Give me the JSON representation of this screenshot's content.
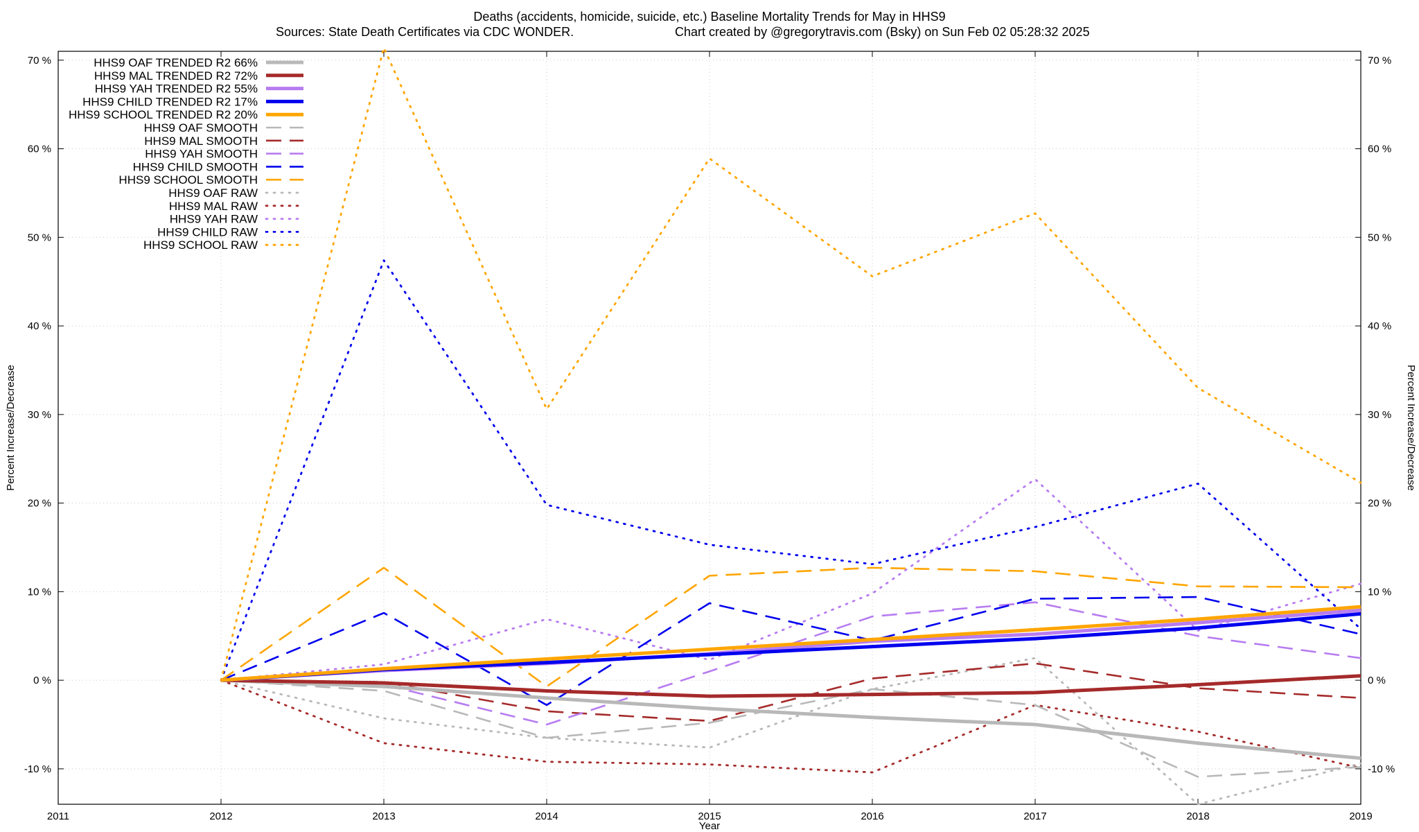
{
  "chart_data": {
    "type": "line",
    "title": "Deaths (accidents, homicide, suicide, etc.)  Baseline Mortality Trends for May in HHS9",
    "subtitle_left": "Sources: State Death Certificates via CDC WONDER.",
    "subtitle_right": "Chart created by @gregorytravis.com (Bsky) on Sun Feb 02 05:28:32 2025",
    "xlabel": "Year",
    "ylabel": "Percent Increase/Decrease",
    "ylabel_right": "Percent Increase/Decrease",
    "xlim": [
      2011,
      2019
    ],
    "ylim": [
      -14,
      71
    ],
    "x_ticks": [
      2011,
      2012,
      2013,
      2014,
      2015,
      2016,
      2017,
      2018,
      2019
    ],
    "x_tick_labels": [
      "2011",
      "2012",
      "2013",
      "2014",
      "2015",
      "2016",
      "2017",
      "2018",
      "2019"
    ],
    "y_ticks": [
      -10,
      0,
      10,
      20,
      30,
      40,
      50,
      60,
      70
    ],
    "y_tick_labels": [
      "-10 %",
      "0 %",
      "10 %",
      "20 %",
      "30 %",
      "40 %",
      "50 %",
      "60 %",
      "70 %"
    ],
    "grid": true,
    "legend_position": "top-left",
    "x": [
      2012,
      2013,
      2014,
      2015,
      2016,
      2017,
      2018,
      2019
    ],
    "series": [
      {
        "name": "HHS9 OAF TRENDED R2  66%",
        "style": "solid",
        "color": "#b8b8b8",
        "values": [
          0,
          -0.7,
          -2.0,
          -3.2,
          -4.2,
          -5.0,
          -7.1,
          -8.8
        ]
      },
      {
        "name": "HHS9 MAL TRENDED R2  72%",
        "style": "solid",
        "color": "#a52a2a",
        "values": [
          0,
          -0.3,
          -1.2,
          -1.8,
          -1.6,
          -1.4,
          -0.5,
          0.5
        ]
      },
      {
        "name": "HHS9 YAH TRENDED R2  55%",
        "style": "solid",
        "color": "#b77cf0",
        "values": [
          0,
          1.1,
          1.9,
          3.0,
          4.4,
          5.2,
          6.5,
          7.9
        ]
      },
      {
        "name": "HHS9 CHILD TRENDED R2  17%",
        "style": "solid",
        "color": "#0000ee",
        "values": [
          0,
          1.2,
          2.0,
          2.9,
          3.8,
          4.7,
          5.9,
          7.5
        ]
      },
      {
        "name": "HHS9 SCHOOL TRENDED R2  20%",
        "style": "solid",
        "color": "#ffa500",
        "values": [
          0,
          1.3,
          2.4,
          3.5,
          4.6,
          5.7,
          6.9,
          8.3
        ]
      },
      {
        "name": "HHS9 OAF SMOOTH",
        "style": "dashed",
        "color": "#b8b8b8",
        "values": [
          0,
          -1.2,
          -6.5,
          -4.8,
          -1.0,
          -2.8,
          -10.9,
          -9.8
        ]
      },
      {
        "name": "HHS9 MAL SMOOTH",
        "style": "dashed",
        "color": "#a52a2a",
        "values": [
          0,
          -0.2,
          -3.5,
          -4.6,
          0.2,
          1.9,
          -0.9,
          -2.0
        ]
      },
      {
        "name": "HHS9 YAH SMOOTH",
        "style": "dashed",
        "color": "#b77cf0",
        "values": [
          0,
          -0.5,
          -5.0,
          1.0,
          7.2,
          8.8,
          5.0,
          2.5
        ]
      },
      {
        "name": "HHS9 CHILD SMOOTH",
        "style": "dashed",
        "color": "#0000ee",
        "values": [
          0,
          7.6,
          -2.8,
          8.7,
          4.5,
          9.2,
          9.4,
          5.2
        ]
      },
      {
        "name": "HHS9 SCHOOL SMOOTH",
        "style": "dashed",
        "color": "#ffa500",
        "values": [
          0,
          12.7,
          -0.7,
          11.8,
          12.7,
          12.3,
          10.6,
          10.5
        ]
      },
      {
        "name": "HHS9 OAF RAW",
        "style": "dotted",
        "color": "#b8b8b8",
        "values": [
          0,
          -4.3,
          -6.5,
          -7.6,
          -1.0,
          2.5,
          -14.0,
          -9.4
        ]
      },
      {
        "name": "HHS9 MAL RAW",
        "style": "dotted",
        "color": "#a52a2a",
        "values": [
          0,
          -7.1,
          -9.2,
          -9.5,
          -10.4,
          -2.8,
          -5.8,
          -9.9
        ]
      },
      {
        "name": "HHS9 YAH RAW",
        "style": "dotted",
        "color": "#b77cf0",
        "values": [
          0,
          1.8,
          6.9,
          2.3,
          9.8,
          22.7,
          5.6,
          10.9
        ]
      },
      {
        "name": "HHS9 CHILD RAW",
        "style": "dotted",
        "color": "#0000ee",
        "values": [
          0,
          47.4,
          19.8,
          15.3,
          13.1,
          17.3,
          22.2,
          5.8
        ]
      },
      {
        "name": "HHS9 SCHOOL RAW",
        "style": "dotted",
        "color": "#ffa500",
        "values": [
          0,
          71.4,
          30.6,
          58.9,
          45.6,
          52.7,
          33.0,
          22.3
        ]
      }
    ]
  }
}
